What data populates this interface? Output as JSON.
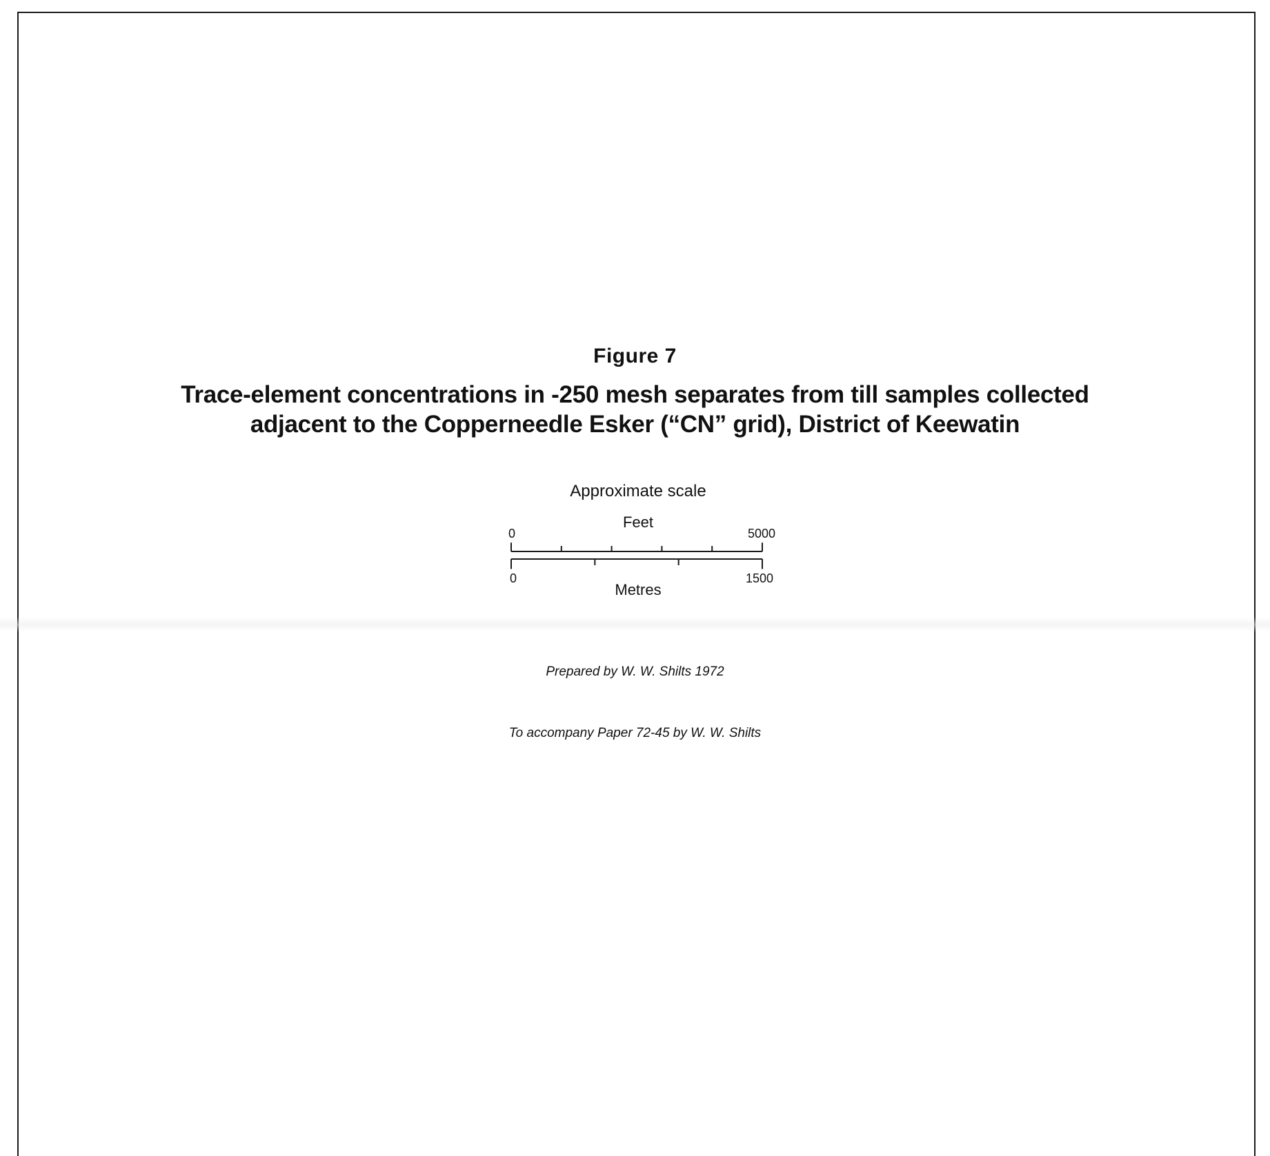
{
  "figure": {
    "label": "Figure 7",
    "title_line1": "Trace-element concentrations in -250 mesh separates from till samples collected",
    "title_line2": "adjacent to the Copperneedle Esker (“CN” grid), District of Keewatin"
  },
  "scale": {
    "caption": "Approximate scale",
    "feet": {
      "unit_label": "Feet",
      "min_label": "0",
      "max_label": "5000",
      "min": 0,
      "max": 5000,
      "divisions": 5
    },
    "metres": {
      "unit_label": "Metres",
      "min_label": "0",
      "max_label": "1500",
      "min": 0,
      "max": 1500,
      "divisions": 3
    }
  },
  "credits": {
    "prepared_by": "Prepared by W. W. Shilts 1972",
    "accompany": "To accompany  Paper 72-45 by W. W. Shilts"
  }
}
